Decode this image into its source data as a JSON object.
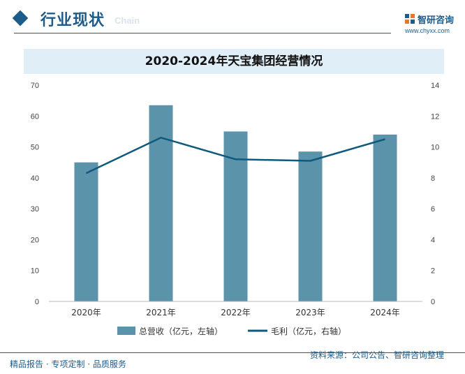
{
  "header": {
    "section_title": "行业现状",
    "section_watermark": "Chain",
    "brand_name": "智研咨询",
    "brand_url": "www.chyxx.com"
  },
  "colors": {
    "bar": "#5b93aa",
    "line": "#0e5a7e",
    "accent": "#1d5c8a",
    "title_band": "#dfeef7"
  },
  "chart_data": {
    "type": "bar",
    "title": "2020-2024年天宝集团经营情况",
    "categories": [
      "2020年",
      "2021年",
      "2022年",
      "2023年",
      "2024年"
    ],
    "series": [
      {
        "name": "总营收（亿元，左轴）",
        "type": "bar",
        "axis": "left",
        "values": [
          45,
          63.5,
          55,
          48.5,
          54
        ]
      },
      {
        "name": "毛利（亿元，右轴）",
        "type": "line",
        "axis": "right",
        "values": [
          8.3,
          10.6,
          9.2,
          9.1,
          10.5
        ]
      }
    ],
    "y_left": {
      "min": 0,
      "max": 70,
      "ticks": [
        "0",
        "10",
        "20",
        "30",
        "40",
        "50",
        "60",
        "70"
      ]
    },
    "y_right": {
      "min": 0,
      "max": 14,
      "ticks": [
        "0",
        "2",
        "4",
        "6",
        "8",
        "10",
        "12",
        "14"
      ]
    },
    "grid": false,
    "legend": "bottom"
  },
  "footer": {
    "tagline": "精品报告 · 专项定制 · 品质服务",
    "source": "资料来源：公司公告、智研咨询整理"
  }
}
